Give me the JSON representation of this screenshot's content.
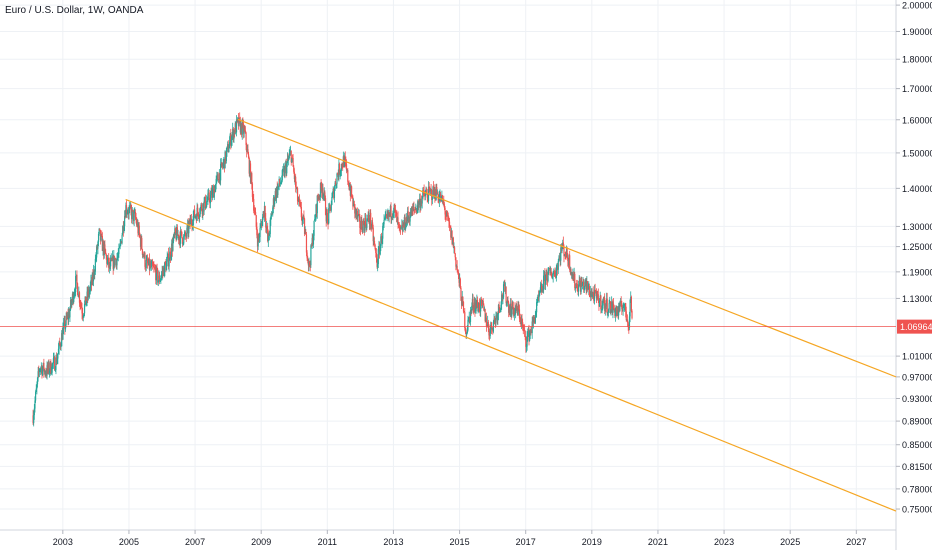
{
  "chart_data": {
    "type": "candlestick",
    "title": "Euro / U.S. Dollar, 1W, OANDA",
    "x_ticks": [
      "2003",
      "2005",
      "2007",
      "2009",
      "2011",
      "2013",
      "2015",
      "2017",
      "2019",
      "2021",
      "2023",
      "2025",
      "2027"
    ],
    "y_ticks": [
      "2.00000",
      "1.90000",
      "1.80000",
      "1.70000",
      "1.60000",
      "1.50000",
      "1.40000",
      "1.30000",
      "1.25000",
      "1.19000",
      "1.13000",
      "1.01000",
      "0.97000",
      "0.93000",
      "0.89000",
      "0.85000",
      "0.81500",
      "0.78000",
      "0.75000"
    ],
    "y_scale": "log",
    "ylim": [
      0.72,
      2.02
    ],
    "xlim": [
      2001.1,
      2028.2
    ],
    "grid": true,
    "current_price": {
      "label": "1.06964",
      "value": 1.06964,
      "color": "#ef5350"
    },
    "price_path": [
      [
        2002.1,
        0.9
      ],
      [
        2002.3,
        0.99
      ],
      [
        2002.5,
        0.98
      ],
      [
        2002.8,
        1.0
      ],
      [
        2003.0,
        1.06
      ],
      [
        2003.2,
        1.1
      ],
      [
        2003.4,
        1.17
      ],
      [
        2003.6,
        1.1
      ],
      [
        2003.9,
        1.17
      ],
      [
        2004.1,
        1.28
      ],
      [
        2004.4,
        1.2
      ],
      [
        2004.7,
        1.23
      ],
      [
        2004.9,
        1.35
      ],
      [
        2005.2,
        1.32
      ],
      [
        2005.5,
        1.21
      ],
      [
        2005.8,
        1.19
      ],
      [
        2005.9,
        1.17
      ],
      [
        2006.2,
        1.22
      ],
      [
        2006.4,
        1.28
      ],
      [
        2006.7,
        1.27
      ],
      [
        2006.9,
        1.32
      ],
      [
        2007.2,
        1.35
      ],
      [
        2007.5,
        1.38
      ],
      [
        2007.7,
        1.43
      ],
      [
        2007.9,
        1.48
      ],
      [
        2008.1,
        1.55
      ],
      [
        2008.3,
        1.59
      ],
      [
        2008.5,
        1.56
      ],
      [
        2008.7,
        1.42
      ],
      [
        2008.9,
        1.26
      ],
      [
        2009.1,
        1.35
      ],
      [
        2009.2,
        1.26
      ],
      [
        2009.4,
        1.38
      ],
      [
        2009.6,
        1.42
      ],
      [
        2009.9,
        1.5
      ],
      [
        2010.1,
        1.37
      ],
      [
        2010.3,
        1.3
      ],
      [
        2010.45,
        1.2
      ],
      [
        2010.7,
        1.37
      ],
      [
        2010.85,
        1.41
      ],
      [
        2011.0,
        1.31
      ],
      [
        2011.3,
        1.44
      ],
      [
        2011.5,
        1.48
      ],
      [
        2011.8,
        1.35
      ],
      [
        2012.0,
        1.3
      ],
      [
        2012.3,
        1.32
      ],
      [
        2012.5,
        1.21
      ],
      [
        2012.7,
        1.3
      ],
      [
        2013.0,
        1.35
      ],
      [
        2013.2,
        1.28
      ],
      [
        2013.4,
        1.32
      ],
      [
        2013.7,
        1.35
      ],
      [
        2013.9,
        1.38
      ],
      [
        2014.3,
        1.39
      ],
      [
        2014.5,
        1.36
      ],
      [
        2014.8,
        1.26
      ],
      [
        2015.0,
        1.16
      ],
      [
        2015.2,
        1.06
      ],
      [
        2015.4,
        1.12
      ],
      [
        2015.7,
        1.11
      ],
      [
        2015.9,
        1.06
      ],
      [
        2016.1,
        1.09
      ],
      [
        2016.35,
        1.15
      ],
      [
        2016.5,
        1.11
      ],
      [
        2016.8,
        1.1
      ],
      [
        2017.0,
        1.04
      ],
      [
        2017.2,
        1.07
      ],
      [
        2017.4,
        1.13
      ],
      [
        2017.6,
        1.18
      ],
      [
        2017.9,
        1.19
      ],
      [
        2018.1,
        1.25
      ],
      [
        2018.3,
        1.22
      ],
      [
        2018.5,
        1.16
      ],
      [
        2018.8,
        1.16
      ],
      [
        2019.0,
        1.14
      ],
      [
        2019.3,
        1.12
      ],
      [
        2019.6,
        1.11
      ],
      [
        2019.8,
        1.1
      ],
      [
        2019.95,
        1.12
      ],
      [
        2020.05,
        1.09
      ],
      [
        2020.12,
        1.08
      ],
      [
        2020.18,
        1.14
      ],
      [
        2020.22,
        1.07
      ]
    ],
    "trendlines": [
      {
        "name": "upper",
        "color": "#f5a623",
        "points": [
          [
            2008.3,
            1.601
          ],
          [
            2028.2,
            0.97
          ]
        ]
      },
      {
        "name": "lower",
        "color": "#f5a623",
        "points": [
          [
            2004.9,
            1.37
          ],
          [
            2028.2,
            0.747
          ]
        ]
      }
    ]
  }
}
